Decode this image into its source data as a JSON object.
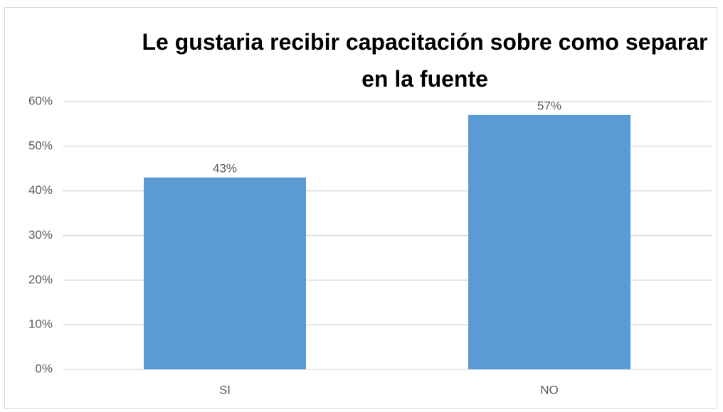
{
  "chart_data": {
    "type": "bar",
    "title": "Le gustaria recibir capacitación sobre como separar en la fuente",
    "categories": [
      "SI",
      "NO"
    ],
    "values": [
      43,
      57
    ],
    "value_labels": [
      "43%",
      "57%"
    ],
    "color": "#5b9bd5",
    "ylim": [
      0,
      60
    ],
    "yticks": [
      {
        "value": 0,
        "label": "0%"
      },
      {
        "value": 10,
        "label": "10%"
      },
      {
        "value": 20,
        "label": "20%"
      },
      {
        "value": 30,
        "label": "30%"
      },
      {
        "value": 40,
        "label": "40%"
      },
      {
        "value": 50,
        "label": "50%"
      },
      {
        "value": 60,
        "label": "60%"
      }
    ],
    "grid": true
  }
}
